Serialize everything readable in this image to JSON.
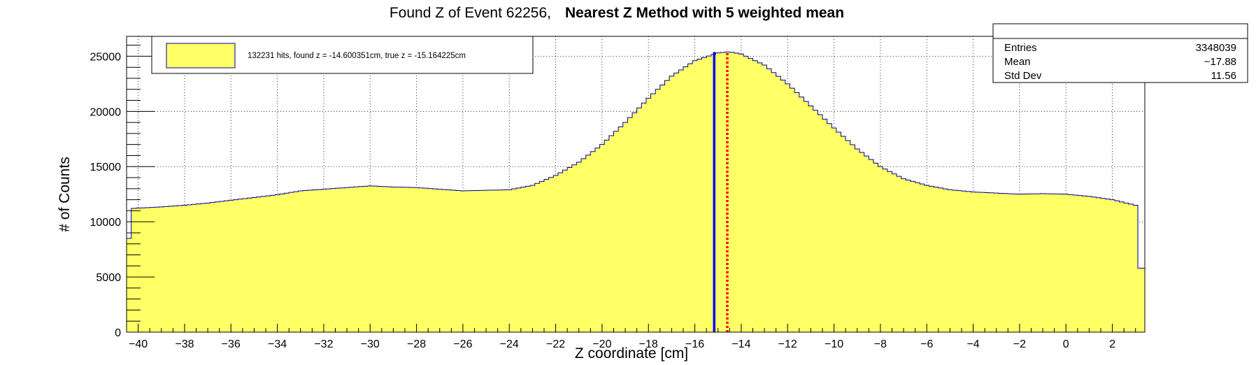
{
  "chart_data": {
    "type": "histogram",
    "title_parts": [
      "Found Z of Event 62256,",
      "Nearest Z Method with 5 weighted mean"
    ],
    "xlabel": "Z coordinate [cm]",
    "ylabel": "# of Counts",
    "xlim": [
      -40.5,
      3.4
    ],
    "ylim": [
      0,
      26800
    ],
    "x_ticks": [
      -40,
      -38,
      -36,
      -34,
      -32,
      -30,
      -28,
      -26,
      -24,
      -22,
      -20,
      -18,
      -16,
      -14,
      -12,
      -10,
      -8,
      -6,
      -4,
      -2,
      0,
      2
    ],
    "y_ticks": [
      0,
      5000,
      10000,
      15000,
      20000,
      25000
    ],
    "grid": true,
    "fill_color": "#ffff66",
    "line_color": "#000099",
    "profile": [
      [
        -40.5,
        5800
      ],
      [
        -40.3,
        11200
      ],
      [
        -39,
        11350
      ],
      [
        -38,
        11500
      ],
      [
        -37,
        11700
      ],
      [
        -36,
        11950
      ],
      [
        -35,
        12200
      ],
      [
        -34,
        12450
      ],
      [
        -33,
        12800
      ],
      [
        -32,
        12950
      ],
      [
        -31,
        13100
      ],
      [
        -30,
        13250
      ],
      [
        -29,
        13150
      ],
      [
        -28,
        13100
      ],
      [
        -27,
        12950
      ],
      [
        -26,
        12800
      ],
      [
        -25,
        12850
      ],
      [
        -24,
        12900
      ],
      [
        -23,
        13300
      ],
      [
        -22,
        14200
      ],
      [
        -21,
        15400
      ],
      [
        -20,
        17000
      ],
      [
        -19,
        19000
      ],
      [
        -18,
        21200
      ],
      [
        -17,
        23200
      ],
      [
        -16,
        24600
      ],
      [
        -15,
        25300
      ],
      [
        -14.5,
        25400
      ],
      [
        -14,
        25200
      ],
      [
        -13,
        24200
      ],
      [
        -12,
        22500
      ],
      [
        -11,
        20500
      ],
      [
        -10,
        18500
      ],
      [
        -9,
        16600
      ],
      [
        -8,
        15000
      ],
      [
        -7,
        13900
      ],
      [
        -6,
        13300
      ],
      [
        -5,
        12900
      ],
      [
        -4,
        12700
      ],
      [
        -3,
        12600
      ],
      [
        -2,
        12500
      ],
      [
        -1,
        12550
      ],
      [
        0,
        12500
      ],
      [
        1,
        12300
      ],
      [
        2,
        12000
      ],
      [
        3,
        11500
      ],
      [
        3.2,
        5800
      ],
      [
        3.4,
        5800
      ]
    ],
    "markers": [
      {
        "x": -15.164225,
        "color": "#0000ff",
        "style": "solid"
      },
      {
        "x": -14.600351,
        "color": "#ff0000",
        "style": "dotted"
      }
    ],
    "legend": {
      "placement": "top-left",
      "text": "132231 hits, found z = -14.600351cm, true z = -15.164225cm",
      "swatch_color": "#ffff66"
    },
    "stats": {
      "placement": "top-right",
      "rows": [
        {
          "label": "Entries",
          "value": "3348039"
        },
        {
          "label": "Mean",
          "value": "−17.88"
        },
        {
          "label": "Std Dev",
          "value": "11.56"
        }
      ]
    }
  }
}
